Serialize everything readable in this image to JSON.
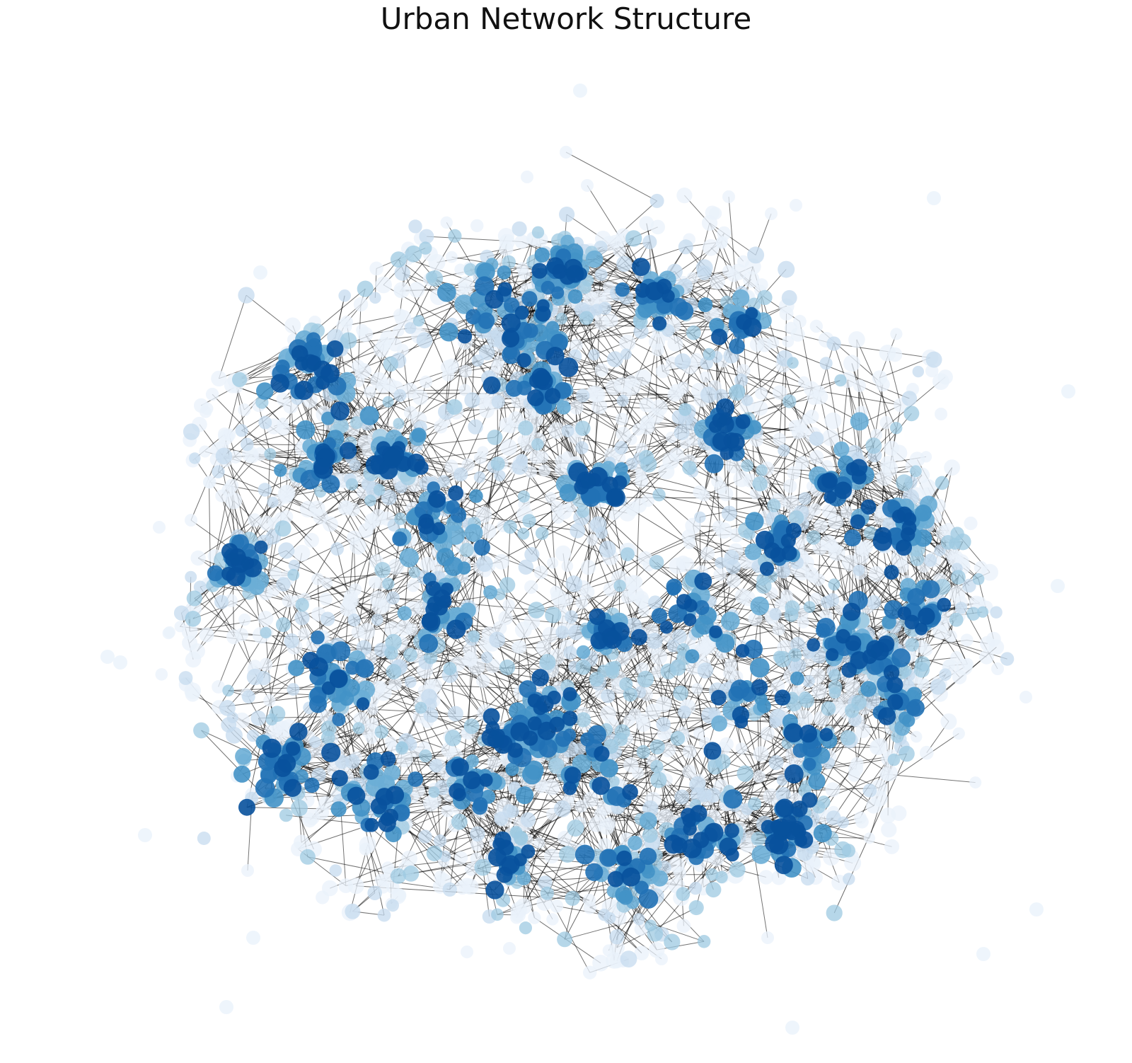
{
  "title": "Urban Network Structure",
  "graph": {
    "type": "network",
    "node_color_scale": [
      "#eaf2fb",
      "#c6dbef",
      "#9ecae1",
      "#6baed6",
      "#4292c6",
      "#2171b5",
      "#08519c"
    ],
    "edge_color": "#000000",
    "node_count_estimate": 2000,
    "dense_cluster_count": 24,
    "isolated_node_count": 15
  }
}
